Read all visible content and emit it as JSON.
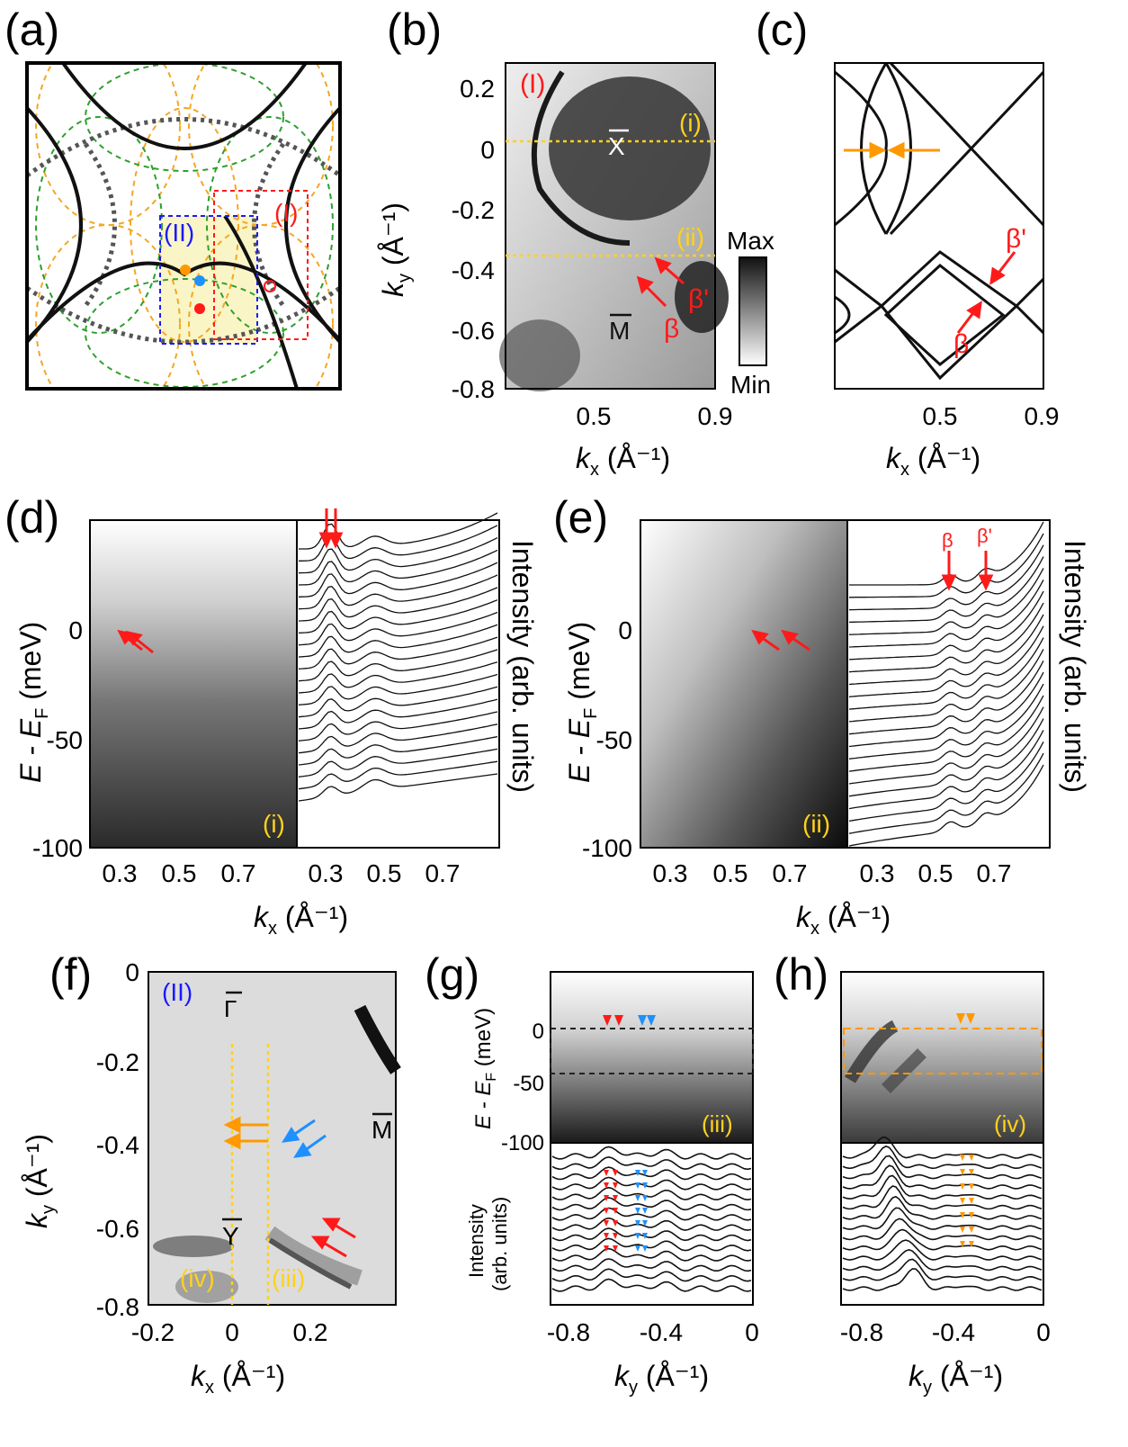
{
  "panels": {
    "a": {
      "label": "(a)",
      "region_I": "(I)",
      "region_II": "(II)"
    },
    "b": {
      "label": "(b)",
      "region": "(I)",
      "cut_i": "(i)",
      "cut_ii": "(ii)",
      "point_X": "X",
      "point_M": "M",
      "arrow_beta": "β",
      "arrow_beta_prime": "β'",
      "colorbar_max": "Max",
      "colorbar_min": "Min",
      "ylabel": "k",
      "ylabel_sub": "y",
      "ylabel_unit": " (Å⁻¹)",
      "xlabel": "k",
      "xlabel_sub": "x",
      "xlabel_unit": " (Å⁻¹)",
      "yticks": [
        "0.2",
        "0",
        "-0.2",
        "-0.4",
        "-0.6",
        "-0.8"
      ],
      "xticks": [
        "0.5",
        "0.9"
      ]
    },
    "c": {
      "label": "(c)",
      "arrow_beta": "β",
      "arrow_beta_prime": "β'",
      "xlabel": "k",
      "xlabel_sub": "x",
      "xlabel_unit": " (Å⁻¹)",
      "xticks": [
        "0.5",
        "0.9"
      ]
    },
    "d": {
      "label": "(d)",
      "cut": "(i)",
      "ylabel": "E - E",
      "ylabel_sub": "F",
      "ylabel_unit": " (meV)",
      "ylabel_right": "Intensity (arb. units)",
      "yticks": [
        "0",
        "-50",
        "-100"
      ],
      "xticks_left": [
        "0.3",
        "0.5",
        "0.7"
      ],
      "xticks_right": [
        "0.3",
        "0.5",
        "0.7"
      ]
    },
    "e": {
      "label": "(e)",
      "cut": "(ii)",
      "ylabel": "E - E",
      "ylabel_sub": "F",
      "ylabel_unit": " (meV)",
      "ylabel_right": "Intensity (arb. units)",
      "marker_beta": "β",
      "marker_beta_prime": "β'",
      "yticks": [
        "0",
        "-50",
        "-100"
      ],
      "xticks_left": [
        "0.3",
        "0.5",
        "0.7"
      ],
      "xticks_right": [
        "0.3",
        "0.5",
        "0.7"
      ]
    },
    "de_xlabel": {
      "text": "k",
      "sub": "x",
      "unit": " (Å⁻¹)"
    },
    "f": {
      "label": "(f)",
      "region": "(II)",
      "point_G": "Γ",
      "point_M": "M",
      "point_Y": "Y",
      "cut_iii": "(iii)",
      "cut_iv": "(iv)",
      "ylabel": "k",
      "ylabel_sub": "y",
      "ylabel_unit": " (Å⁻¹)",
      "xlabel": "k",
      "xlabel_sub": "x",
      "xlabel_unit": " (Å⁻¹)",
      "yticks": [
        "0",
        "-0.2",
        "-0.4",
        "-0.6",
        "-0.8"
      ],
      "xticks": [
        "-0.2",
        "0",
        "0.2"
      ]
    },
    "g": {
      "label": "(g)",
      "cut": "(iii)",
      "ylabel": "E - E",
      "ylabel_sub": "F",
      "ylabel_unit": " (meV)",
      "ylabel2_line1": "Intensity",
      "ylabel2_line2": "(arb. units)",
      "yticks": [
        "0",
        "-50",
        "-100"
      ],
      "xticks": [
        "-0.8",
        "-0.4",
        "0"
      ],
      "xlabel": "k",
      "xlabel_sub": "y",
      "xlabel_unit": " (Å⁻¹)"
    },
    "h": {
      "label": "(h)",
      "cut": "(iv)",
      "xticks": [
        "-0.8",
        "-0.4",
        "0"
      ],
      "xlabel": "k",
      "xlabel_sub": "y",
      "xlabel_unit": " (Å⁻¹)"
    }
  },
  "colors": {
    "red": "#ff1a1a",
    "blue": "#1a1aff",
    "orange": "#ff9900",
    "yellow": "#ffd21a",
    "cyan": "#1e90ff",
    "green": "#22aa22"
  }
}
